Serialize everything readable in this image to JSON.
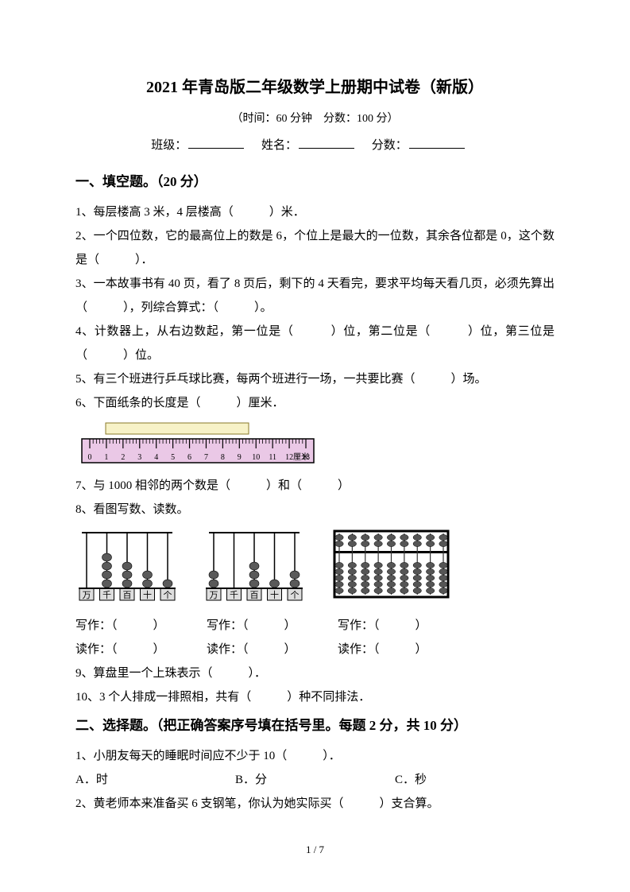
{
  "title": "2021 年青岛版二年级数学上册期中试卷（新版）",
  "subtitle": "（时间：60 分钟　分数：100 分）",
  "info": {
    "class_label": "班级：",
    "name_label": "姓名：",
    "score_label": "分数："
  },
  "section1": {
    "heading": "一、填空题。（20 分）",
    "q1": "1、每层楼高 3 米，4 层楼高（　　　）米．",
    "q2": "2、一个四位数，它的最高位上的数是 6，个位上是最大的一位数，其余各位都是 0，这个数是（　　　）．",
    "q3": "3、一本故事书有 40 页，看了 8 页后，剩下的 4 天看完，要求平均每天看几页，必须先算出（　　　），列综合算式：（　　　）。",
    "q4": "4、计数器上，从右边数起，第一位是（　　　）位，第二位是（　　　）位，第三位是（　　　）位。",
    "q5": "5、有三个班进行乒乓球比赛，每两个班进行一场，一共要比赛（　　　）场。",
    "q6": "6、下面纸条的长度是（　　　）厘米．",
    "q7": "7、与 1000 相邻的两个数是（　　　）和（　　　）",
    "q8": "8、看图写数、读数。",
    "write_label": "写作：（　　　）",
    "read_label": "读作：（　　　）",
    "q9": "9、算盘里一个上珠表示（　　　）．",
    "q10": "10、3 个人排成一排照相，共有（　　　）种不同排法．"
  },
  "section2": {
    "heading": "二、选择题。（把正确答案序号填在括号里。每题 2 分，共 10 分）",
    "q1": "1、小朋友每天的睡眠时间应不少于 10（　　　）．",
    "q1_opts": {
      "a": "A．时",
      "b": "B．分",
      "c": "C．秒"
    },
    "q2": "2、黄老师本来准备买 6 支钢笔，你认为她实际买（　　　）支合算。"
  },
  "ruler": {
    "bg": "#eac8e6",
    "tape_bg": "#f7f2c7",
    "tape_border": "#8a7a2a",
    "line": "#000000",
    "ticks": [
      0,
      1,
      2,
      3,
      4,
      5,
      6,
      7,
      8,
      9,
      10,
      11,
      12,
      13
    ],
    "unit": "厘米"
  },
  "abacus_counter": {
    "frame": "#000000",
    "rod": "#000000",
    "bead": "#5a5a5a",
    "base_fill": "#dddddd",
    "labels": [
      "万",
      "千",
      "百",
      "十",
      "个"
    ],
    "set1": [
      0,
      4,
      3,
      2,
      1
    ],
    "set2": [
      2,
      0,
      3,
      1,
      2
    ]
  },
  "suanpan": {
    "frame": "#000000",
    "rod": "#333333",
    "bead": "#555555",
    "columns": 9
  },
  "page_number": "1 / 7"
}
